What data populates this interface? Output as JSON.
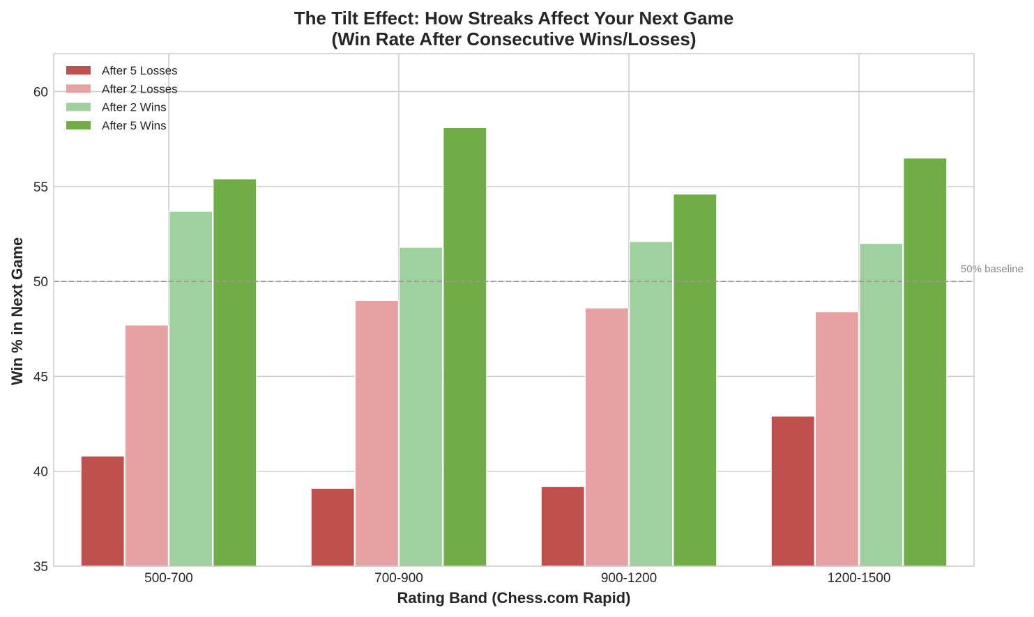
{
  "chart_data": {
    "type": "bar",
    "title": "The Tilt Effect: How Streaks Affect Your Next Game",
    "subtitle": "(Win Rate After Consecutive Wins/Losses)",
    "xlabel": "Rating Band (Chess.com Rapid)",
    "ylabel": "Win % in Next Game",
    "ylim": [
      35,
      62
    ],
    "yticks": [
      35,
      40,
      45,
      50,
      55,
      60
    ],
    "grid": true,
    "legend_position": "top-left",
    "categories": [
      "500-700",
      "700-900",
      "900-1200",
      "1200-1500"
    ],
    "series": [
      {
        "name": "After 5 Losses",
        "color": "#c0504d",
        "values": [
          40.8,
          39.1,
          39.2,
          42.9
        ]
      },
      {
        "name": "After 2 Losses",
        "color": "#e8a1a2",
        "values": [
          47.7,
          49.0,
          48.6,
          48.4
        ]
      },
      {
        "name": "After 2 Wins",
        "color": "#a1d09f",
        "values": [
          53.7,
          51.8,
          52.1,
          52.0
        ]
      },
      {
        "name": "After 5 Wins",
        "color": "#70ad47",
        "values": [
          55.4,
          58.1,
          54.6,
          56.5
        ]
      }
    ],
    "reference_line": {
      "value": 50,
      "label": "50% baseline",
      "style": "dashed",
      "color": "#999999"
    }
  }
}
